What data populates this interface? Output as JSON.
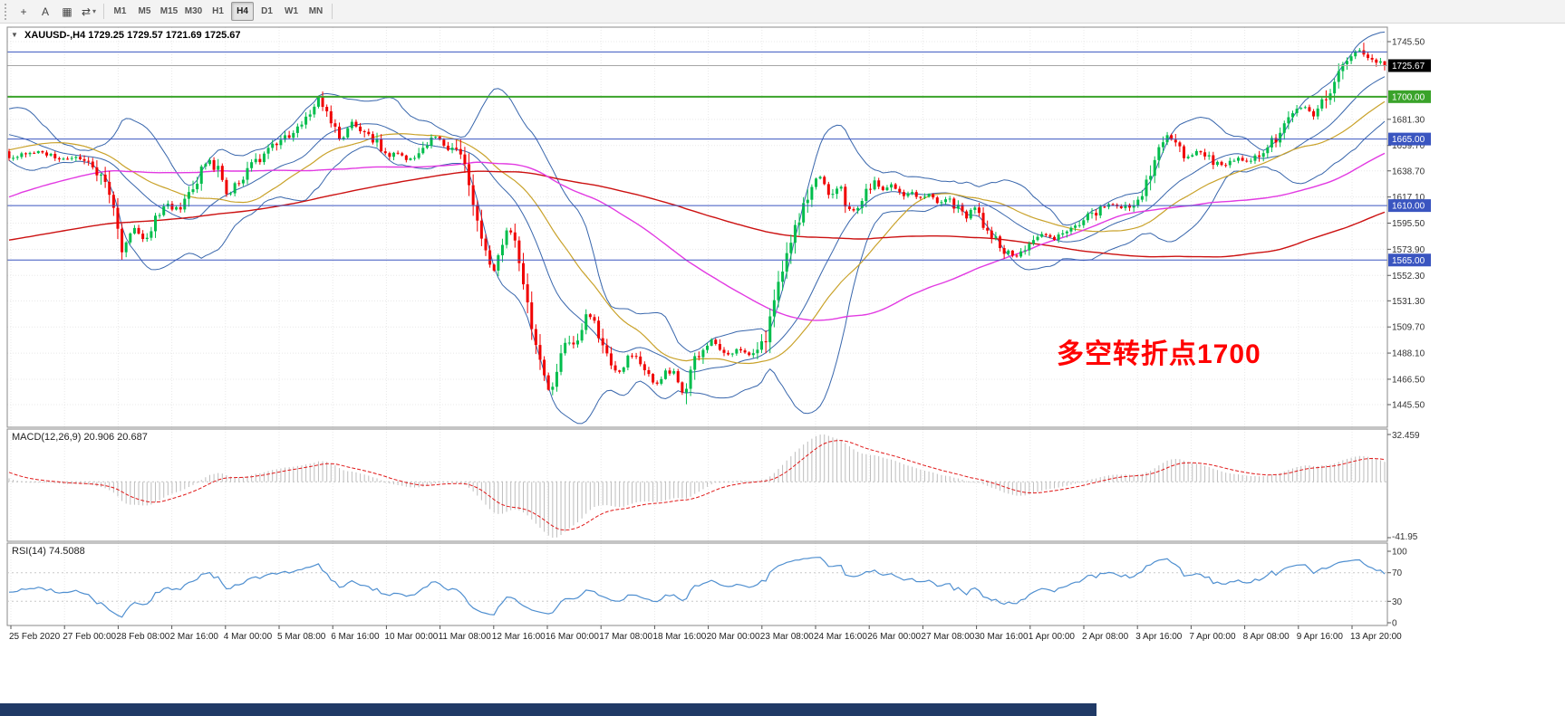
{
  "colors": {
    "candle_up": "#00bd4c",
    "candle_down": "#f00000",
    "bollinger": "#3866ac",
    "ma_gold": "#c9a22a",
    "ma_red": "#cc1111",
    "ma_magenta": "#e23ae2",
    "macd_hist": "#bdbdbd",
    "macd_signal": "#e01818",
    "rsi_line": "#4f8fd0",
    "hline_blue": "#3a55c0",
    "hline_green": "#3aa32a",
    "bid_line": "#a6a6a6",
    "annotation": "#ff0000",
    "bottom_bar": "#203a66"
  },
  "toolbar": {
    "icons": [
      {
        "name": "crosshair-icon",
        "glyph": "+"
      },
      {
        "name": "text-tool-icon",
        "glyph": "A"
      },
      {
        "name": "chart-window-icon",
        "glyph": "▦"
      },
      {
        "name": "template-cycle-icon",
        "glyph": "⇄",
        "caret": "▾"
      }
    ],
    "timeframes": [
      {
        "label": "M1"
      },
      {
        "label": "M5"
      },
      {
        "label": "M15"
      },
      {
        "label": "M30"
      },
      {
        "label": "H1"
      },
      {
        "label": "H4",
        "active": true
      },
      {
        "label": "D1"
      },
      {
        "label": "W1"
      },
      {
        "label": "MN"
      }
    ]
  },
  "chart": {
    "dropdown_arrow": "▼",
    "readout": "XAUUSD-,H4  1729.25 1729.57 1721.69 1725.67",
    "annotation": "多空转折点1700"
  },
  "chart_data": {
    "type": "candlestick",
    "symbol": "XAUUSD-",
    "timeframe": "H4",
    "last_candle": {
      "open": 1729.25,
      "high": 1729.57,
      "low": 1721.69,
      "close": 1725.67
    },
    "y_ticks": [
      "1745.50",
      "1681.30",
      "1659.70",
      "1638.70",
      "1617.10",
      "1595.50",
      "1573.90",
      "1552.30",
      "1531.30",
      "1509.70",
      "1488.10",
      "1466.50",
      "1445.50"
    ],
    "x_labels": [
      "25 Feb 2020",
      "27 Feb 00:00",
      "28 Feb 08:00",
      "2 Mar 16:00",
      "4 Mar 00:00",
      "5 Mar 08:00",
      "6 Mar 16:00",
      "10 Mar 00:00",
      "11 Mar 08:00",
      "12 Mar 16:00",
      "16 Mar 00:00",
      "17 Mar 08:00",
      "18 Mar 16:00",
      "20 Mar 00:00",
      "23 Mar 08:00",
      "24 Mar 16:00",
      "26 Mar 00:00",
      "27 Mar 08:00",
      "30 Mar 16:00",
      "1 Apr 00:00",
      "2 Apr 08:00",
      "3 Apr 16:00",
      "7 Apr 00:00",
      "8 Apr 08:00",
      "9 Apr 16:00",
      "13 Apr 20:00"
    ],
    "hlines": [
      {
        "price": 1737.0,
        "color": "#3a55c0",
        "width": 1,
        "label": null,
        "box": null
      },
      {
        "price": 1725.67,
        "color": "#a6a6a6",
        "width": 1,
        "label": "1725.67",
        "box": "#000000"
      },
      {
        "price": 1700.0,
        "color": "#3aa32a",
        "width": 2,
        "label": "1700.00",
        "box": "#3aa32a"
      },
      {
        "price": 1665.0,
        "color": "#3a55c0",
        "width": 1,
        "label": "1665.00",
        "box": "#3a55c0"
      },
      {
        "price": 1610.0,
        "color": "#3a55c0",
        "width": 1,
        "label": "1610.00",
        "box": "#3a55c0"
      },
      {
        "price": 1565.0,
        "color": "#3a55c0",
        "width": 1,
        "label": "1565.00",
        "box": "#3a55c0"
      }
    ],
    "macd": {
      "label": "MACD(12,26,9) 20.906 20.687",
      "scale_top": "32.459",
      "scale_bottom": "-41.95"
    },
    "rsi": {
      "label": "RSI(14) 74.5088",
      "scale_labels": [
        "100",
        "70",
        "30",
        "0"
      ],
      "levels": [
        70,
        30
      ]
    },
    "price_path": [
      [
        0,
        1648
      ],
      [
        0.01,
        1652
      ],
      [
        0.023,
        1655
      ],
      [
        0.036,
        1648
      ],
      [
        0.049,
        1650
      ],
      [
        0.063,
        1640
      ],
      [
        0.071,
        1625
      ],
      [
        0.078,
        1600
      ],
      [
        0.082,
        1572
      ],
      [
        0.087,
        1585
      ],
      [
        0.092,
        1592
      ],
      [
        0.099,
        1582
      ],
      [
        0.105,
        1598
      ],
      [
        0.115,
        1610
      ],
      [
        0.125,
        1605
      ],
      [
        0.133,
        1622
      ],
      [
        0.14,
        1640
      ],
      [
        0.146,
        1648
      ],
      [
        0.155,
        1635
      ],
      [
        0.159,
        1615
      ],
      [
        0.166,
        1630
      ],
      [
        0.175,
        1642
      ],
      [
        0.184,
        1650
      ],
      [
        0.194,
        1660
      ],
      [
        0.203,
        1668
      ],
      [
        0.211,
        1678
      ],
      [
        0.219,
        1690
      ],
      [
        0.225,
        1698
      ],
      [
        0.231,
        1688
      ],
      [
        0.236,
        1672
      ],
      [
        0.242,
        1665
      ],
      [
        0.249,
        1678
      ],
      [
        0.256,
        1672
      ],
      [
        0.262,
        1665
      ],
      [
        0.269,
        1660
      ],
      [
        0.275,
        1650
      ],
      [
        0.282,
        1655
      ],
      [
        0.289,
        1648
      ],
      [
        0.295,
        1650
      ],
      [
        0.303,
        1660
      ],
      [
        0.311,
        1668
      ],
      [
        0.318,
        1660
      ],
      [
        0.324,
        1655
      ],
      [
        0.331,
        1648
      ],
      [
        0.336,
        1620
      ],
      [
        0.341,
        1595
      ],
      [
        0.347,
        1570
      ],
      [
        0.352,
        1555
      ],
      [
        0.357,
        1575
      ],
      [
        0.362,
        1590
      ],
      [
        0.368,
        1578
      ],
      [
        0.373,
        1550
      ],
      [
        0.378,
        1520
      ],
      [
        0.383,
        1495
      ],
      [
        0.389,
        1470
      ],
      [
        0.394,
        1452
      ],
      [
        0.399,
        1478
      ],
      [
        0.404,
        1500
      ],
      [
        0.41,
        1490
      ],
      [
        0.415,
        1508
      ],
      [
        0.42,
        1520
      ],
      [
        0.426,
        1512
      ],
      [
        0.432,
        1495
      ],
      [
        0.438,
        1480
      ],
      [
        0.445,
        1472
      ],
      [
        0.451,
        1488
      ],
      [
        0.458,
        1480
      ],
      [
        0.464,
        1470
      ],
      [
        0.471,
        1462
      ],
      [
        0.478,
        1475
      ],
      [
        0.484,
        1468
      ],
      [
        0.491,
        1452
      ],
      [
        0.497,
        1480
      ],
      [
        0.504,
        1492
      ],
      [
        0.511,
        1500
      ],
      [
        0.517,
        1492
      ],
      [
        0.524,
        1486
      ],
      [
        0.53,
        1492
      ],
      [
        0.537,
        1486
      ],
      [
        0.543,
        1490
      ],
      [
        0.55,
        1500
      ],
      [
        0.555,
        1525
      ],
      [
        0.559,
        1548
      ],
      [
        0.563,
        1560
      ],
      [
        0.568,
        1578
      ],
      [
        0.573,
        1595
      ],
      [
        0.578,
        1612
      ],
      [
        0.584,
        1628
      ],
      [
        0.59,
        1635
      ],
      [
        0.596,
        1618
      ],
      [
        0.603,
        1628
      ],
      [
        0.609,
        1610
      ],
      [
        0.616,
        1605
      ],
      [
        0.622,
        1618
      ],
      [
        0.629,
        1630
      ],
      [
        0.636,
        1622
      ],
      [
        0.642,
        1628
      ],
      [
        0.649,
        1618
      ],
      [
        0.655,
        1622
      ],
      [
        0.662,
        1615
      ],
      [
        0.669,
        1620
      ],
      [
        0.675,
        1612
      ],
      [
        0.682,
        1618
      ],
      [
        0.688,
        1610
      ],
      [
        0.695,
        1600
      ],
      [
        0.702,
        1606
      ],
      [
        0.711,
        1588
      ],
      [
        0.721,
        1575
      ],
      [
        0.731,
        1568
      ],
      [
        0.741,
        1578
      ],
      [
        0.751,
        1588
      ],
      [
        0.761,
        1582
      ],
      [
        0.771,
        1592
      ],
      [
        0.781,
        1598
      ],
      [
        0.79,
        1605
      ],
      [
        0.8,
        1612
      ],
      [
        0.81,
        1608
      ],
      [
        0.82,
        1615
      ],
      [
        0.829,
        1632
      ],
      [
        0.835,
        1655
      ],
      [
        0.842,
        1668
      ],
      [
        0.848,
        1660
      ],
      [
        0.856,
        1648
      ],
      [
        0.864,
        1655
      ],
      [
        0.873,
        1648
      ],
      [
        0.883,
        1642
      ],
      [
        0.893,
        1650
      ],
      [
        0.902,
        1645
      ],
      [
        0.912,
        1655
      ],
      [
        0.922,
        1668
      ],
      [
        0.932,
        1685
      ],
      [
        0.942,
        1692
      ],
      [
        0.949,
        1683
      ],
      [
        0.955,
        1695
      ],
      [
        0.962,
        1710
      ],
      [
        0.968,
        1722
      ],
      [
        0.975,
        1735
      ],
      [
        0.981,
        1740
      ],
      [
        0.987,
        1733
      ],
      [
        0.992,
        1729
      ],
      [
        0.997,
        1726
      ],
      [
        1,
        1725.67
      ]
    ]
  }
}
